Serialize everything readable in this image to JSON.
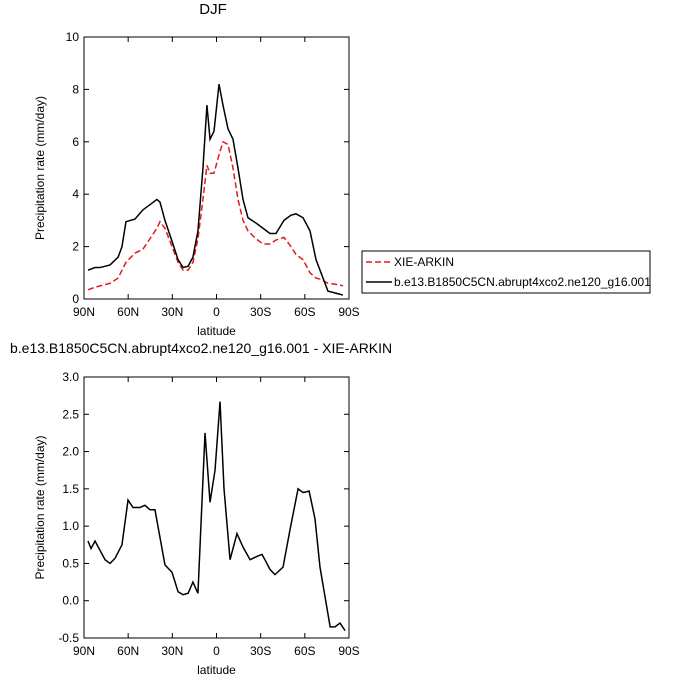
{
  "chart_data": [
    {
      "type": "line",
      "title": "DJF",
      "xlabel": "latitude",
      "ylabel": "Precipitation rate (mm/day)",
      "xlim": [
        90,
        -90
      ],
      "xticks": [
        {
          "value": 90,
          "label": "90N"
        },
        {
          "value": 60,
          "label": "60N"
        },
        {
          "value": 30,
          "label": "30N"
        },
        0,
        {
          "value": -30,
          "label": "30S"
        },
        {
          "value": -60,
          "label": "60S"
        },
        {
          "value": -90,
          "label": "90S"
        }
      ],
      "ylim": [
        0,
        10
      ],
      "yticks": [
        0,
        2,
        4,
        6,
        8,
        10
      ],
      "legend": "right",
      "x": [
        87.3,
        82.5,
        79.1,
        72.3,
        66.8,
        64.2,
        61.5,
        55.4,
        50,
        45.2,
        40.5,
        38.4,
        35,
        30.2,
        26.1,
        22.7,
        19.3,
        16,
        12.6,
        9.2,
        6.5,
        4.4,
        1.7,
        -1.7,
        -4.4,
        -7.8,
        -11.2,
        -14.6,
        -18,
        -21.4,
        -26.8,
        -31.6,
        -36.3,
        -40.4,
        -45.8,
        -50.6,
        -54,
        -58.8,
        -63.5,
        -67.6,
        -71,
        -75.7,
        -82.5,
        -85.9
      ],
      "series": [
        {
          "name": "XIE-ARKIN",
          "color": "#e41a1c",
          "dash": true,
          "values": [
            0.35,
            0.45,
            0.5,
            0.6,
            0.8,
            1.1,
            1.4,
            1.75,
            1.9,
            2.3,
            2.7,
            2.95,
            2.7,
            2.0,
            1.4,
            1.1,
            1.1,
            1.4,
            2.3,
            3.8,
            5.1,
            4.8,
            4.8,
            5.5,
            6.0,
            5.9,
            5.0,
            3.8,
            3.0,
            2.6,
            2.3,
            2.1,
            2.1,
            2.25,
            2.35,
            2.0,
            1.7,
            1.5,
            1.0,
            0.8,
            0.75,
            0.6,
            0.55,
            0.5
          ]
        },
        {
          "name": "b.e13.B1850C5CN.abrupt4xco2.ne120_g16.001",
          "color": "#000000",
          "dash": false,
          "values": [
            1.1,
            1.2,
            1.2,
            1.3,
            1.6,
            2.0,
            2.95,
            3.05,
            3.4,
            3.6,
            3.8,
            3.7,
            3.0,
            2.2,
            1.5,
            1.2,
            1.25,
            1.6,
            2.6,
            5.0,
            7.4,
            6.1,
            6.4,
            8.2,
            7.4,
            6.5,
            6.1,
            5.0,
            3.8,
            3.1,
            2.9,
            2.7,
            2.5,
            2.5,
            3.0,
            3.2,
            3.25,
            3.1,
            2.6,
            1.5,
            1.0,
            0.3,
            0.2,
            0.15
          ]
        }
      ]
    },
    {
      "type": "line",
      "title": "b.e13.B1850C5CN.abrupt4xco2.ne120_g16.001 - XIE-ARKIN",
      "xlabel": "latitude",
      "ylabel": "Precipitation rate (mm/day)",
      "xlim": [
        90,
        -90
      ],
      "xticks": [
        {
          "value": 90,
          "label": "90N"
        },
        {
          "value": 60,
          "label": "60N"
        },
        {
          "value": 30,
          "label": "30N"
        },
        0,
        {
          "value": -30,
          "label": "30S"
        },
        {
          "value": -60,
          "label": "60S"
        },
        {
          "value": -90,
          "label": "90S"
        }
      ],
      "ylim": [
        -0.5,
        3
      ],
      "yticks": [
        -0.5,
        {
          "value": 0,
          "label": "0.0"
        },
        0.5,
        {
          "value": 1,
          "label": "1.0"
        },
        1.5,
        {
          "value": 2,
          "label": "2.0"
        },
        2.5,
        {
          "value": 3,
          "label": "3.0"
        }
      ],
      "x": [
        87.3,
        85.2,
        82.5,
        75.7,
        72.3,
        68.9,
        64.2,
        60.1,
        56.7,
        52,
        48.6,
        45.2,
        41.8,
        35,
        30.2,
        26.1,
        22.7,
        19.3,
        16,
        12.6,
        7.8,
        4.4,
        1,
        -2.4,
        -5.1,
        -9.2,
        -13.9,
        -18,
        -22.8,
        -28.2,
        -30.9,
        -32.9,
        -36.3,
        -39.7,
        -45.2,
        -49.9,
        -55.4,
        -58.8,
        -62.9,
        -66.9,
        -70.3,
        -77.2,
        -80.5,
        -83.9,
        -87.3
      ],
      "series": [
        {
          "color": "#000000",
          "dash": false,
          "values": [
            0.8,
            0.7,
            0.8,
            0.55,
            0.5,
            0.57,
            0.75,
            1.35,
            1.25,
            1.25,
            1.28,
            1.22,
            1.22,
            0.48,
            0.38,
            0.12,
            0.08,
            0.1,
            0.25,
            0.1,
            2.25,
            1.32,
            1.75,
            2.67,
            1.5,
            0.55,
            0.9,
            0.72,
            0.55,
            0.6,
            0.62,
            0.55,
            0.42,
            0.35,
            0.45,
            0.95,
            1.5,
            1.45,
            1.47,
            1.1,
            0.45,
            -0.35,
            -0.35,
            -0.3,
            -0.4
          ]
        }
      ]
    }
  ]
}
